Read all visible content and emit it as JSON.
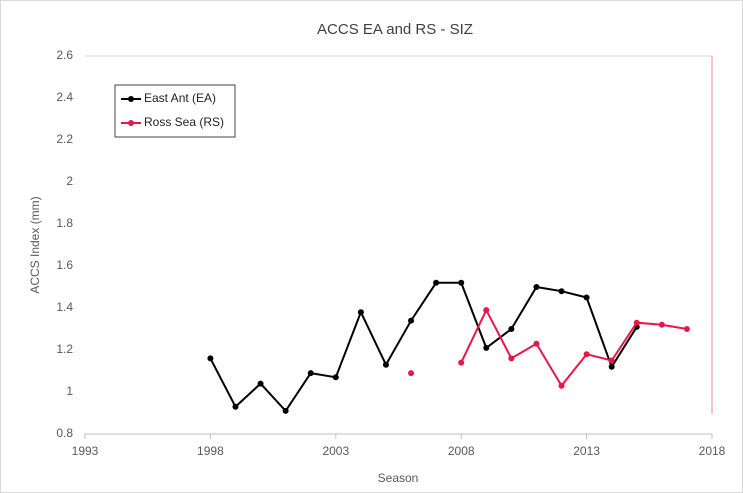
{
  "chart_data": {
    "type": "line",
    "title": "ACCS EA and RS - SIZ",
    "x_label": "Season",
    "y_label": "ACCS Index (mm)",
    "x": [
      1998,
      1999,
      2000,
      2001,
      2002,
      2003,
      2004,
      2005,
      2006,
      2007,
      2008,
      2009,
      2010,
      2011,
      2012,
      2013,
      2014,
      2015,
      2016,
      2017
    ],
    "series": [
      {
        "name": "East Ant (EA)",
        "color": "#000000",
        "values": [
          1.16,
          0.93,
          1.04,
          0.91,
          1.09,
          1.07,
          1.38,
          1.13,
          1.34,
          1.52,
          1.52,
          1.21,
          1.3,
          1.5,
          1.48,
          1.45,
          1.12,
          1.31,
          null,
          null
        ]
      },
      {
        "name": "Ross Sea (RS)",
        "color": "#e8174a",
        "values": [
          null,
          null,
          null,
          null,
          null,
          null,
          null,
          null,
          1.09,
          null,
          1.14,
          1.39,
          1.16,
          1.23,
          1.03,
          1.18,
          1.15,
          1.33,
          1.32,
          1.3
        ]
      }
    ],
    "xlim": [
      1993,
      2018
    ],
    "xticks": [
      1993,
      1998,
      2003,
      2008,
      2013,
      2018
    ],
    "ylim": [
      0.8,
      2.6
    ],
    "yticks": [
      0.8,
      1,
      1.2,
      1.4,
      1.6,
      1.8,
      2,
      2.2,
      2.4,
      2.6
    ],
    "legend": "upper left"
  }
}
